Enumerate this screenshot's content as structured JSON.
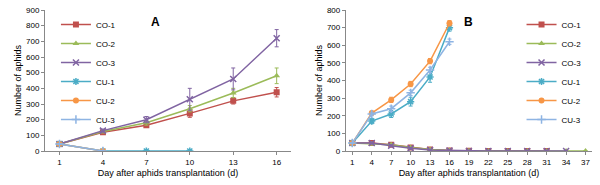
{
  "chart_data": [
    {
      "type": "line",
      "annotations": [
        "A"
      ],
      "x_label": "Day after aphids transplantation (d)",
      "y_label": "Number of aphids",
      "x": [
        1,
        4,
        7,
        10,
        13,
        16
      ],
      "xlim": [
        0,
        17
      ],
      "xticks": [
        1,
        4,
        7,
        10,
        13,
        16
      ],
      "ylim": [
        0,
        900
      ],
      "yticks": [
        0,
        100,
        200,
        300,
        400,
        500,
        600,
        700,
        800,
        900
      ],
      "grid": false,
      "legend": "top left",
      "series": [
        {
          "name": "CO-1",
          "color": "#C0504D",
          "marker": "square",
          "line_style": "solid",
          "values": [
            45,
            120,
            165,
            240,
            320,
            375
          ],
          "errors": [
            3,
            10,
            15,
            25,
            20,
            30
          ]
        },
        {
          "name": "CO-2",
          "color": "#9BBB59",
          "marker": "triangle",
          "line_style": "solid",
          "values": [
            45,
            125,
            180,
            270,
            370,
            480
          ],
          "errors": [
            3,
            10,
            15,
            20,
            30,
            50
          ]
        },
        {
          "name": "CO-3",
          "color": "#8064A2",
          "marker": "x",
          "line_style": "solid",
          "values": [
            45,
            130,
            200,
            330,
            460,
            720
          ],
          "errors": [
            3,
            10,
            20,
            70,
            70,
            55
          ]
        },
        {
          "name": "CU-1",
          "color": "#4BACC6",
          "marker": "star",
          "line_style": "solid",
          "values": [
            45,
            0,
            0,
            0,
            null,
            null
          ],
          "errors": [
            3,
            0,
            0,
            0,
            null,
            null
          ]
        },
        {
          "name": "CU-2",
          "color": "#F79646",
          "marker": "circle",
          "line_style": "solid",
          "values": [
            45,
            0,
            null,
            null,
            null,
            null
          ],
          "errors": [
            3,
            0,
            null,
            null,
            null,
            null
          ]
        },
        {
          "name": "CU-3",
          "color": "#8EB4E3",
          "marker": "cross",
          "line_style": "solid",
          "values": [
            45,
            0,
            null,
            null,
            null,
            null
          ],
          "errors": [
            3,
            0,
            null,
            null,
            null,
            null
          ]
        }
      ]
    },
    {
      "type": "line",
      "annotations": [
        "B"
      ],
      "x_label": "Day after aphids transplantation (d)",
      "y_label": "Number of aphids",
      "x": [
        1,
        4,
        7,
        10,
        13,
        16,
        19,
        22,
        25,
        28,
        31,
        34,
        37
      ],
      "xlim": [
        0,
        38
      ],
      "xticks": [
        1,
        4,
        7,
        10,
        13,
        16,
        19,
        22,
        25,
        28,
        31,
        34,
        37
      ],
      "ylim": [
        0,
        800
      ],
      "yticks": [
        0,
        100,
        200,
        300,
        400,
        500,
        600,
        700,
        800
      ],
      "grid": false,
      "legend": "top right",
      "series": [
        {
          "name": "CO-1",
          "color": "#C0504D",
          "marker": "square",
          "line_style": "solid",
          "values": [
            45,
            45,
            35,
            20,
            8,
            3,
            1,
            0,
            0,
            0,
            0,
            null,
            null
          ],
          "errors": [
            3,
            5,
            5,
            4,
            2,
            1,
            0,
            0,
            0,
            0,
            0,
            null,
            null
          ]
        },
        {
          "name": "CO-2",
          "color": "#9BBB59",
          "marker": "triangle",
          "line_style": "solid",
          "values": [
            45,
            40,
            35,
            20,
            8,
            3,
            1,
            0,
            0,
            0,
            0,
            0,
            0
          ],
          "errors": [
            3,
            5,
            5,
            4,
            2,
            1,
            0,
            0,
            0,
            0,
            0,
            0,
            0
          ]
        },
        {
          "name": "CO-3",
          "color": "#8064A2",
          "marker": "x",
          "line_style": "solid",
          "values": [
            45,
            45,
            30,
            15,
            5,
            2,
            0,
            0,
            0,
            0,
            0,
            0,
            null
          ],
          "errors": [
            3,
            5,
            5,
            4,
            2,
            1,
            0,
            0,
            0,
            0,
            0,
            0,
            null
          ]
        },
        {
          "name": "CU-1",
          "color": "#4BACC6",
          "marker": "star",
          "line_style": "solid",
          "values": [
            45,
            170,
            210,
            280,
            420,
            700,
            null,
            null,
            null,
            null,
            null,
            null,
            null
          ],
          "errors": [
            3,
            15,
            20,
            25,
            30,
            20,
            null,
            null,
            null,
            null,
            null,
            null,
            null
          ]
        },
        {
          "name": "CU-2",
          "color": "#F79646",
          "marker": "circle",
          "line_style": "solid",
          "values": [
            45,
            215,
            290,
            380,
            510,
            725,
            null,
            null,
            null,
            null,
            null,
            null,
            null
          ],
          "errors": [
            3,
            10,
            15,
            15,
            15,
            15,
            null,
            null,
            null,
            null,
            null,
            null,
            null
          ]
        },
        {
          "name": "CU-3",
          "color": "#8EB4E3",
          "marker": "cross",
          "line_style": "solid",
          "values": [
            45,
            210,
            240,
            330,
            460,
            620,
            null,
            null,
            null,
            null,
            null,
            null,
            null
          ],
          "errors": [
            3,
            10,
            15,
            15,
            15,
            15,
            null,
            null,
            null,
            null,
            null,
            null,
            null
          ]
        }
      ]
    }
  ]
}
